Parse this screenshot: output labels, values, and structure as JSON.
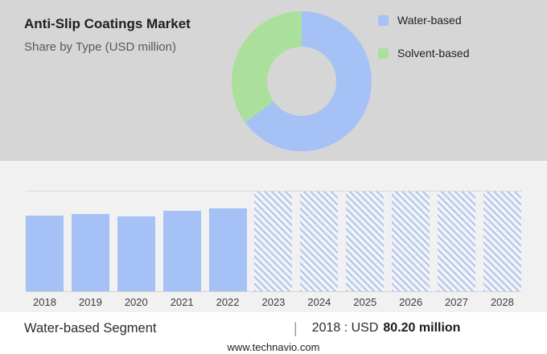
{
  "header": {
    "title": "Anti-Slip Coatings Market",
    "subtitle": "Share by Type (USD million)"
  },
  "colors": {
    "water_blue": "#a6c1f5",
    "solvent_green": "#abe09c",
    "top_background": "#d6d6d6",
    "middle_background": "#f1f1f1"
  },
  "legend": {
    "items": [
      {
        "label": "Water-based",
        "color": "#a6c1f5"
      },
      {
        "label": "Solvent-based",
        "color": "#abe09c"
      }
    ]
  },
  "footer": {
    "segment": "Water-based Segment",
    "separator": "|",
    "stat_prefix": "2018 : USD",
    "stat_value": "80.20 million",
    "website": "www.technavio.com"
  },
  "chart_data": [
    {
      "type": "pie",
      "donut": true,
      "title": "Share by Type (USD million)",
      "labels": [
        "Water-based",
        "Solvent-based"
      ],
      "values_pct": [
        65,
        35
      ],
      "colors": [
        "#a6c1f5",
        "#abe09c"
      ],
      "legend_position": "right"
    },
    {
      "type": "bar",
      "title": "Water-based Segment",
      "categories": [
        "2018",
        "2019",
        "2020",
        "2021",
        "2022",
        "2023",
        "2024",
        "2025",
        "2026",
        "2027",
        "2028"
      ],
      "values": [
        80.2,
        82,
        79.5,
        85.5,
        88,
        null,
        null,
        null,
        null,
        null,
        null
      ],
      "ylim": [
        0,
        106
      ],
      "xlabel": "",
      "ylabel": "USD million",
      "grid": "top-and-baseline-only",
      "forecast_style": "hatched-full-height-bars-2023-2028",
      "annotation": "2018 : USD 80.20 million"
    }
  ]
}
